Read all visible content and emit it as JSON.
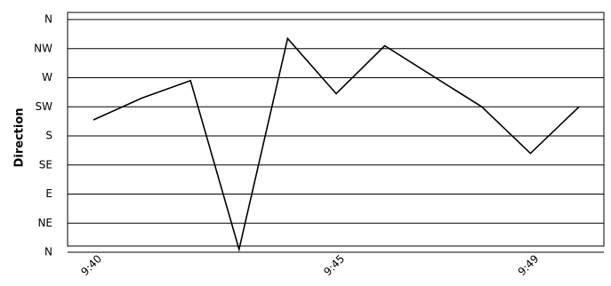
{
  "chart_data": {
    "type": "line",
    "title": "",
    "xlabel": "",
    "ylabel": "Direction",
    "y_categories": [
      "N",
      "NE",
      "E",
      "SE",
      "S",
      "SW",
      "W",
      "NW",
      "N"
    ],
    "x_ticks": [
      "9:40",
      "9:45",
      "9:49"
    ],
    "grid": true,
    "legend": "none",
    "series": [
      {
        "color": "#000000",
        "points": [
          {
            "x": "9:40",
            "y": 4.55
          },
          {
            "x": "9:41",
            "y": 5.3
          },
          {
            "x": "9:42",
            "y": 5.9
          },
          {
            "x": "9:43",
            "y": 0.1
          },
          {
            "x": "9:44",
            "y": 7.35
          },
          {
            "x": "9:45",
            "y": 5.45
          },
          {
            "x": "9:46",
            "y": 7.1
          },
          {
            "x": "9:47",
            "y": 6.05
          },
          {
            "x": "9:48",
            "y": 5.0
          },
          {
            "x": "9:49",
            "y": 3.4
          },
          {
            "x": "9:50",
            "y": 5.0
          }
        ]
      }
    ]
  }
}
